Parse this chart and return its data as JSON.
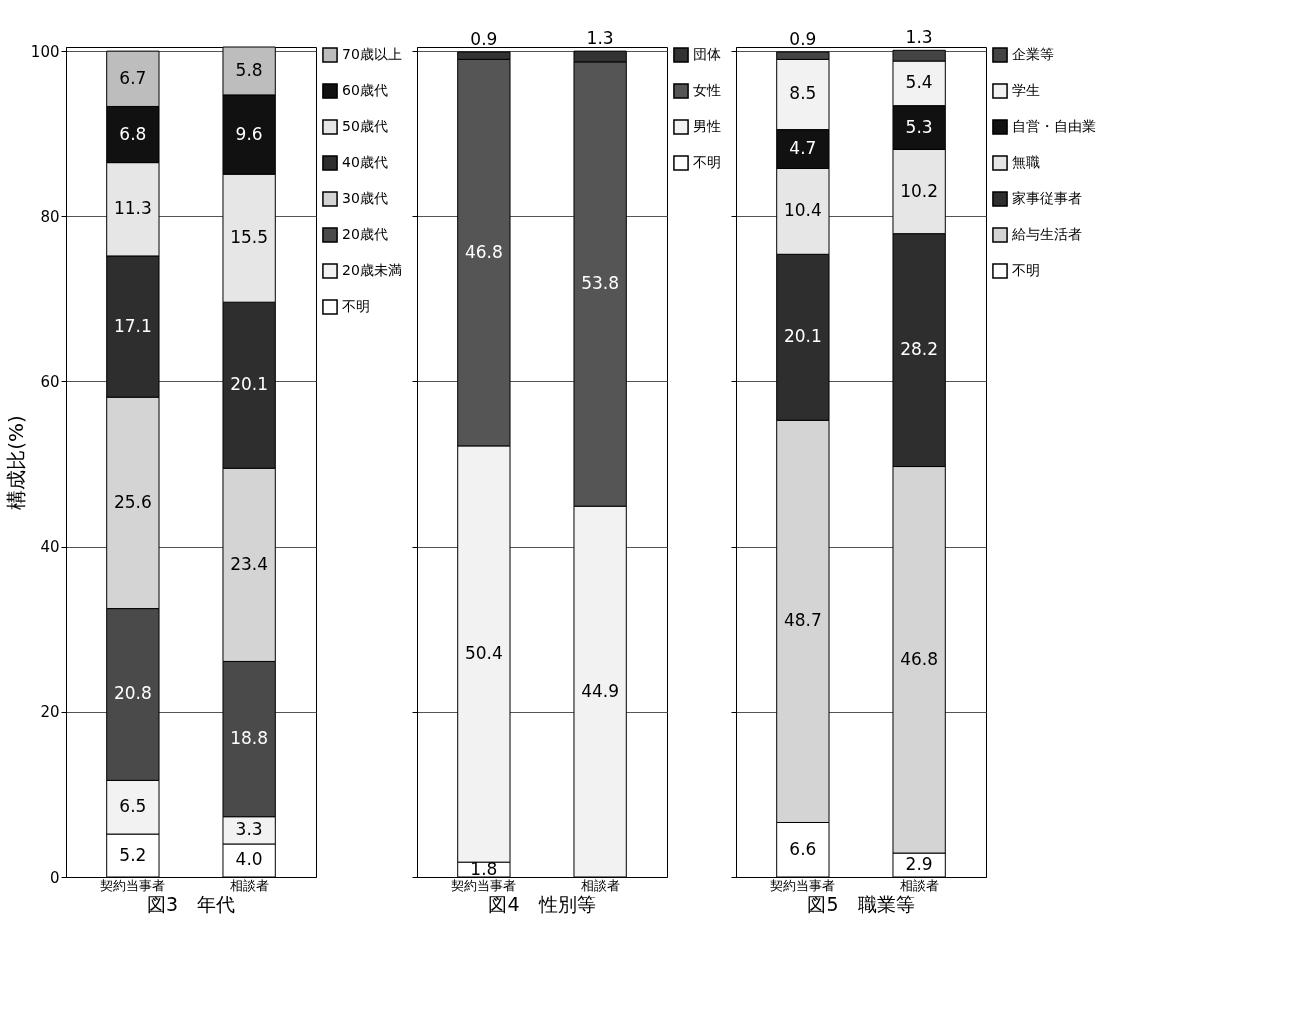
{
  "chart_data": [
    {
      "type": "bar",
      "stacked": true,
      "title": "図3　年代",
      "ylabel": "構成比(%)",
      "categories": [
        "契約当事者",
        "相談者"
      ],
      "ylim": [
        0,
        100.5
      ],
      "yticks": [
        0,
        20,
        40,
        60,
        80,
        100
      ],
      "grid": "y",
      "legend": "right",
      "data_labels": true,
      "series": [
        {
          "name": "不明",
          "color": "#ffffff",
          "values": [
            5.2,
            4.0
          ],
          "value_labels": [
            "5.2",
            "4.0"
          ]
        },
        {
          "name": "20歳未満",
          "color": "#f2f2f2",
          "values": [
            6.5,
            3.3
          ]
        },
        {
          "name": "20歳代",
          "color": "#4a4a4a",
          "values": [
            20.8,
            18.8
          ]
        },
        {
          "name": "30歳代",
          "color": "#d4d4d4",
          "values": [
            25.6,
            23.4
          ]
        },
        {
          "name": "40歳代",
          "color": "#2e2e2e",
          "values": [
            17.1,
            20.1
          ]
        },
        {
          "name": "50歳代",
          "color": "#e6e6e6",
          "values": [
            11.3,
            15.5
          ]
        },
        {
          "name": "60歳代",
          "color": "#111111",
          "values": [
            6.8,
            9.6
          ]
        },
        {
          "name": "70歳以上",
          "color": "#bdbdbd",
          "values": [
            6.7,
            5.8
          ]
        }
      ]
    },
    {
      "type": "bar",
      "stacked": true,
      "title": "図4　性別等",
      "categories": [
        "契約当事者",
        "相談者"
      ],
      "ylim": [
        0,
        100.5
      ],
      "yticks": [
        0,
        20,
        40,
        60,
        80,
        100
      ],
      "grid": "y",
      "legend": "right",
      "data_labels": true,
      "tick_labels": "x",
      "series": [
        {
          "name": "不明",
          "color": "#ffffff",
          "values": [
            1.8,
            null
          ]
        },
        {
          "name": "男性",
          "color": "#f2f2f2",
          "values": [
            50.4,
            44.9
          ]
        },
        {
          "name": "女性",
          "color": "#555555",
          "values": [
            46.8,
            53.8
          ]
        },
        {
          "name": "団体",
          "color": "#333333",
          "values": [
            0.9,
            1.3
          ]
        }
      ]
    },
    {
      "type": "bar",
      "stacked": true,
      "title": "図5　職業等",
      "categories": [
        "契約当事者",
        "相談者"
      ],
      "ylim": [
        0,
        100.5
      ],
      "yticks": [
        0,
        20,
        40,
        60,
        80,
        100
      ],
      "grid": "y",
      "legend": "right",
      "data_labels": true,
      "tick_labels": "x",
      "series": [
        {
          "name": "不明",
          "color": "#ffffff",
          "values": [
            6.6,
            2.9
          ]
        },
        {
          "name": "給与生活者",
          "color": "#d4d4d4",
          "values": [
            48.7,
            46.8
          ]
        },
        {
          "name": "家事従事者",
          "color": "#2e2e2e",
          "values": [
            20.1,
            28.2
          ]
        },
        {
          "name": "無職",
          "color": "#e6e6e6",
          "values": [
            10.4,
            10.2
          ]
        },
        {
          "name": "自営・自由業",
          "color": "#111111",
          "values": [
            4.7,
            5.3
          ]
        },
        {
          "name": "学生",
          "color": "#f2f2f2",
          "values": [
            8.5,
            5.4
          ]
        },
        {
          "name": "企業等",
          "color": "#444444",
          "values": [
            0.9,
            1.3
          ]
        }
      ]
    }
  ]
}
